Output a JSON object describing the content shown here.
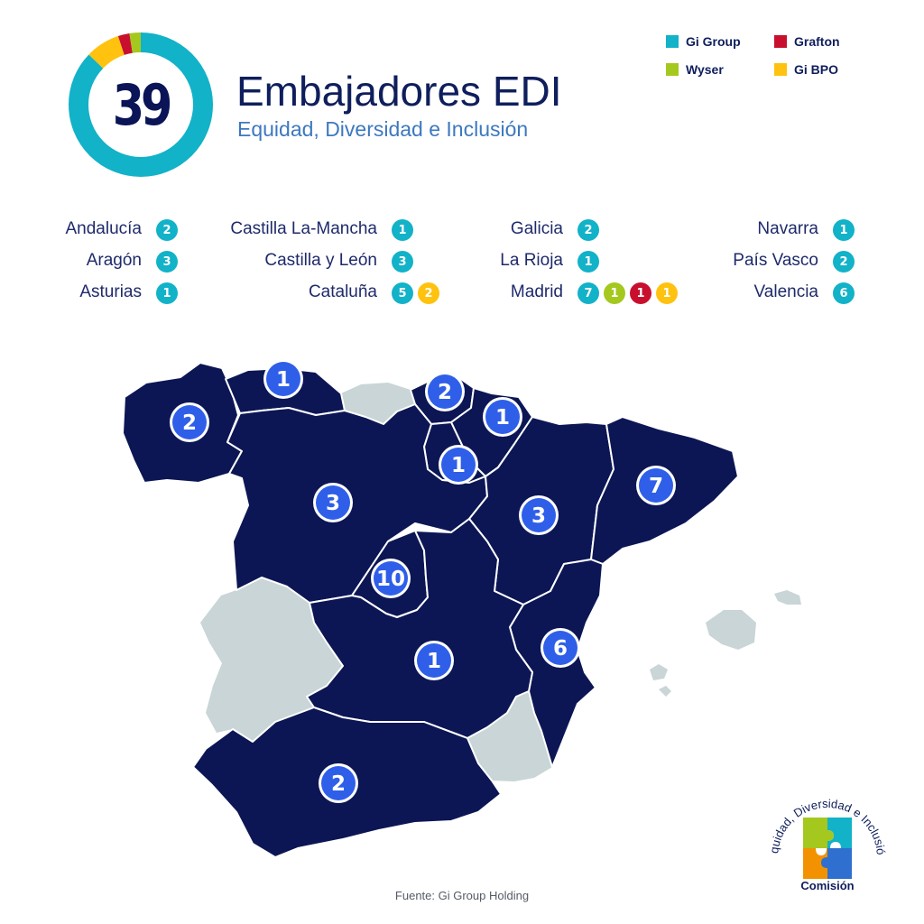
{
  "total": "39",
  "title": "Embajadores EDI",
  "subtitle": "Equidad, Diversidad e Inclusión",
  "donut": [
    {
      "name": "Gi Group",
      "value": 34,
      "color": "#12b2c8"
    },
    {
      "name": "Gi BPO",
      "value": 3,
      "color": "#ffc20e"
    },
    {
      "name": "Grafton",
      "value": 1,
      "color": "#c8102e"
    },
    {
      "name": "Wyser",
      "value": 1,
      "color": "#a5c81e"
    }
  ],
  "legend": [
    {
      "label": "Gi Group",
      "color": "#12b2c8"
    },
    {
      "label": "Grafton",
      "color": "#c8102e"
    },
    {
      "label": "Wyser",
      "color": "#a5c81e"
    },
    {
      "label": "Gi BPO",
      "color": "#ffc20e"
    }
  ],
  "regions": [
    {
      "name": "Andalucía",
      "badges": [
        {
          "v": "2",
          "c": "#12b2c8"
        }
      ]
    },
    {
      "name": "Aragón",
      "badges": [
        {
          "v": "3",
          "c": "#12b2c8"
        }
      ]
    },
    {
      "name": "Asturias",
      "badges": [
        {
          "v": "1",
          "c": "#12b2c8"
        }
      ]
    },
    {
      "name": "Castilla La-Mancha",
      "badges": [
        {
          "v": "1",
          "c": "#12b2c8"
        }
      ]
    },
    {
      "name": "Castilla y León",
      "badges": [
        {
          "v": "3",
          "c": "#12b2c8"
        }
      ]
    },
    {
      "name": "Cataluña",
      "badges": [
        {
          "v": "5",
          "c": "#12b2c8"
        },
        {
          "v": "2",
          "c": "#ffc20e"
        }
      ]
    },
    {
      "name": "Galicia",
      "badges": [
        {
          "v": "2",
          "c": "#12b2c8"
        }
      ]
    },
    {
      "name": "La Rioja",
      "badges": [
        {
          "v": "1",
          "c": "#12b2c8"
        }
      ]
    },
    {
      "name": "Madrid",
      "badges": [
        {
          "v": "7",
          "c": "#12b2c8"
        },
        {
          "v": "1",
          "c": "#a5c81e"
        },
        {
          "v": "1",
          "c": "#c8102e"
        },
        {
          "v": "1",
          "c": "#ffc20e"
        }
      ]
    },
    {
      "name": "Navarra",
      "badges": [
        {
          "v": "1",
          "c": "#12b2c8"
        }
      ]
    },
    {
      "name": "País Vasco",
      "badges": [
        {
          "v": "2",
          "c": "#12b2c8"
        }
      ]
    },
    {
      "name": "Valencia",
      "badges": [
        {
          "v": "6",
          "c": "#12b2c8"
        }
      ]
    }
  ],
  "map_markers": {
    "galicia": "2",
    "asturias": "1",
    "pais_vasco": "2",
    "navarra": "1",
    "la_rioja": "1",
    "castilla_leon": "3",
    "aragon": "3",
    "cataluna": "7",
    "madrid": "10",
    "valencia": "6",
    "castilla_la_mancha": "1",
    "andalucia": "2"
  },
  "colors": {
    "map_fill": "#0c1654",
    "map_inactive": "#c9d5d6",
    "marker": "#2f5fe8"
  },
  "source": "Fuente: Gi Group Holding",
  "logo": {
    "arc_text": "Equidad, Diversidad e Inclusión",
    "label": "Comisión"
  }
}
